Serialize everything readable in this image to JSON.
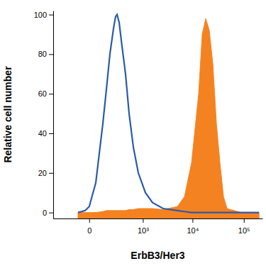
{
  "chart_data": {
    "type": "line",
    "x_label": "ErbB3/Her3",
    "y_label": "Relative cell number",
    "log": "x",
    "grid": false,
    "xlim": [
      -400,
      230000
    ],
    "xticks": [
      0,
      {
        "value": 1000,
        "label": "10³"
      },
      {
        "value": 10000,
        "label": "10⁴"
      },
      {
        "value": 100000,
        "label": "10⁵"
      }
    ],
    "ylim": [
      -3,
      102
    ],
    "yticks": [
      0,
      20,
      40,
      60,
      80,
      100
    ],
    "x": [
      -65,
      -20,
      0,
      34,
      84,
      115,
      152,
      196,
      225,
      247,
      281,
      333,
      407,
      494,
      619,
      797,
      1133,
      1594,
      2622,
      5040,
      6950,
      9580,
      13200,
      15490,
      18140,
      21280,
      24970,
      29280,
      34340,
      40260,
      47220,
      89000,
      197000
    ],
    "series": [
      {
        "type": "line",
        "color": "#2b5ba8",
        "values": [
          0,
          1,
          3,
          15,
          45,
          62,
          80,
          93,
          99,
          100,
          96,
          84,
          70,
          50,
          33,
          20,
          10,
          5,
          2,
          1,
          0.5,
          0,
          0,
          0,
          0,
          0,
          0,
          0,
          0,
          0,
          0,
          0,
          0
        ]
      },
      {
        "type": "area",
        "color": "#f58220",
        "values": [
          0,
          0,
          0,
          0,
          0.5,
          1,
          1,
          1,
          1,
          1,
          1,
          1,
          1,
          1.5,
          1.5,
          2,
          2,
          2,
          1.5,
          3,
          8,
          25,
          60,
          90,
          98,
          92,
          75,
          45,
          25,
          8,
          2,
          0,
          0
        ]
      }
    ]
  }
}
